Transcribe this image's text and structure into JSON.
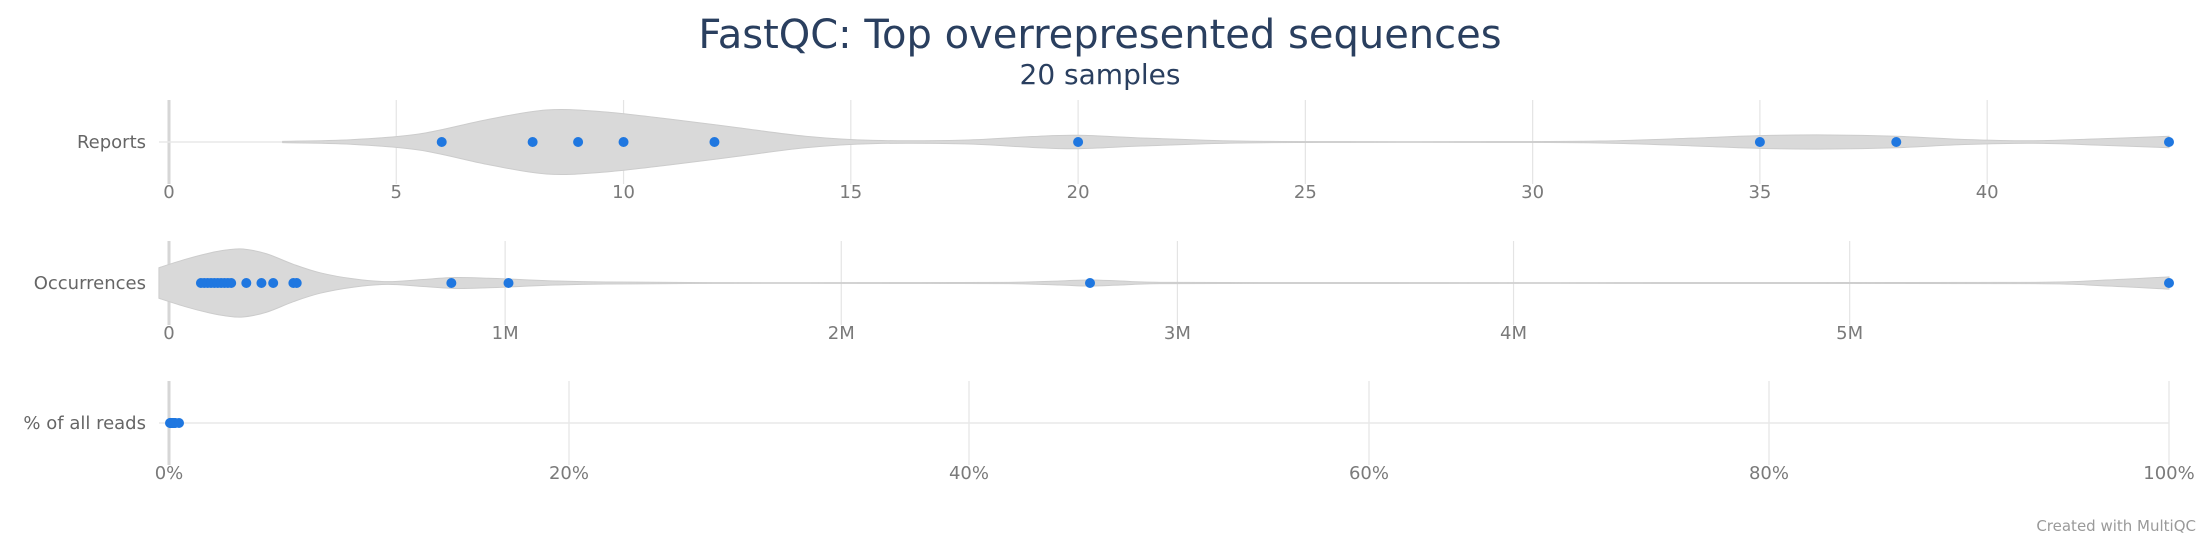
{
  "chart_data": {
    "type": "violin",
    "title": "FastQC: Top overrepresented sequences",
    "subtitle": "20 samples",
    "credit": "Created with MultiQC",
    "colors": {
      "violin_fill": "#d9d9d9",
      "violin_line": "#cccccc",
      "point": "#1f77e0",
      "grid": "#e4e4e4",
      "title": "#2a3f5f"
    },
    "rows": [
      {
        "label": "Reports",
        "xlim": [
          0,
          44
        ],
        "ticks": [
          {
            "value": 0,
            "label": "0"
          },
          {
            "value": 5,
            "label": "5"
          },
          {
            "value": 10,
            "label": "10"
          },
          {
            "value": 15,
            "label": "15"
          },
          {
            "value": 20,
            "label": "20"
          },
          {
            "value": 25,
            "label": "25"
          },
          {
            "value": 30,
            "label": "30"
          },
          {
            "value": 35,
            "label": "35"
          },
          {
            "value": 40,
            "label": "40"
          }
        ],
        "density_range": [
          2.5,
          44
        ],
        "density": [
          [
            2.5,
            0.02
          ],
          [
            4,
            0.07
          ],
          [
            5.5,
            0.25
          ],
          [
            7,
            0.7
          ],
          [
            8.3,
            1.0
          ],
          [
            9.5,
            0.95
          ],
          [
            11,
            0.72
          ],
          [
            12.5,
            0.45
          ],
          [
            14,
            0.18
          ],
          [
            15.5,
            0.05
          ],
          [
            17.5,
            0.06
          ],
          [
            19,
            0.17
          ],
          [
            20,
            0.21
          ],
          [
            21.5,
            0.12
          ],
          [
            23.5,
            0.03
          ],
          [
            26,
            0.01
          ],
          [
            29,
            0.01
          ],
          [
            31.5,
            0.03
          ],
          [
            33.5,
            0.12
          ],
          [
            35,
            0.2
          ],
          [
            36.5,
            0.22
          ],
          [
            38,
            0.18
          ],
          [
            39.5,
            0.08
          ],
          [
            41,
            0.04
          ],
          [
            42.5,
            0.1
          ],
          [
            44,
            0.18
          ]
        ],
        "points": [
          6,
          8,
          9,
          10,
          12,
          20,
          35,
          38,
          44
        ]
      },
      {
        "label": "Occurrences",
        "xlim": [
          0,
          5950000
        ],
        "ticks": [
          {
            "value": 0,
            "label": "0"
          },
          {
            "value": 1000000,
            "label": "1M"
          },
          {
            "value": 2000000,
            "label": "2M"
          },
          {
            "value": 3000000,
            "label": "3M"
          },
          {
            "value": 4000000,
            "label": "4M"
          },
          {
            "value": 5000000,
            "label": "5M"
          }
        ],
        "density_range": [
          -30000,
          5950000
        ],
        "density": [
          [
            -30000,
            0.45
          ],
          [
            50000,
            0.7
          ],
          [
            120000,
            0.88
          ],
          [
            170000,
            0.97
          ],
          [
            220000,
            1.0
          ],
          [
            290000,
            0.86
          ],
          [
            370000,
            0.55
          ],
          [
            450000,
            0.3
          ],
          [
            550000,
            0.12
          ],
          [
            650000,
            0.04
          ],
          [
            750000,
            0.1
          ],
          [
            850000,
            0.16
          ],
          [
            950000,
            0.14
          ],
          [
            1050000,
            0.1
          ],
          [
            1150000,
            0.06
          ],
          [
            1300000,
            0.03
          ],
          [
            1600000,
            0.01
          ],
          [
            2200000,
            0.01
          ],
          [
            2500000,
            0.02
          ],
          [
            2650000,
            0.06
          ],
          [
            2740000,
            0.09
          ],
          [
            2830000,
            0.06
          ],
          [
            2950000,
            0.02
          ],
          [
            3400000,
            0.01
          ],
          [
            4800000,
            0.01
          ],
          [
            5550000,
            0.02
          ],
          [
            5750000,
            0.08
          ],
          [
            5950000,
            0.18
          ]
        ],
        "points": [
          95000,
          105000,
          115000,
          125000,
          135000,
          145000,
          155000,
          165000,
          175000,
          185000,
          230000,
          275000,
          310000,
          370000,
          380000,
          840000,
          1010000,
          2740000,
          5950000
        ]
      },
      {
        "label": "% of all reads",
        "xlim": [
          0,
          100
        ],
        "ticks": [
          {
            "value": 0,
            "label": "0%"
          },
          {
            "value": 20,
            "label": "20%"
          },
          {
            "value": 40,
            "label": "40%"
          },
          {
            "value": 60,
            "label": "60%"
          },
          {
            "value": 80,
            "label": "80%"
          },
          {
            "value": 100,
            "label": "100%"
          }
        ],
        "density_range": [
          -0.05,
          0.55
        ],
        "density": [
          [
            -0.05,
            0.2
          ],
          [
            0.05,
            0.6
          ],
          [
            0.15,
            0.45
          ],
          [
            0.25,
            0.2
          ],
          [
            0.4,
            0.08
          ],
          [
            0.55,
            0.03
          ]
        ],
        "points": [
          0.05,
          0.08,
          0.1,
          0.12,
          0.14,
          0.17,
          0.2,
          0.23,
          0.27,
          0.32,
          0.5
        ]
      }
    ]
  }
}
